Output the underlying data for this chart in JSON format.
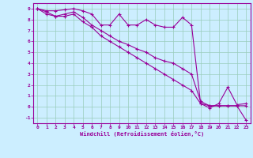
{
  "xlabel": "Windchill (Refroidissement éolien,°C)",
  "bg_color": "#cceeff",
  "line_color": "#990099",
  "grid_color": "#99ccbb",
  "axis_color": "#660066",
  "xlim": [
    -0.5,
    23.5
  ],
  "ylim": [
    -1.5,
    9.5
  ],
  "xticks": [
    0,
    1,
    2,
    3,
    4,
    5,
    6,
    7,
    8,
    9,
    10,
    11,
    12,
    13,
    14,
    15,
    16,
    17,
    18,
    19,
    20,
    21,
    22,
    23
  ],
  "yticks": [
    -1,
    0,
    1,
    2,
    3,
    4,
    5,
    6,
    7,
    8,
    9
  ],
  "line1_x": [
    0,
    1,
    2,
    3,
    4,
    5,
    6,
    7,
    8,
    9,
    10,
    11,
    12,
    13,
    14,
    15,
    16,
    17,
    18,
    19,
    20,
    21,
    22,
    23
  ],
  "line1_y": [
    9.0,
    8.8,
    8.8,
    8.9,
    9.0,
    8.8,
    8.5,
    7.5,
    7.5,
    8.5,
    7.5,
    7.5,
    8.0,
    7.5,
    7.3,
    7.3,
    8.2,
    7.5,
    0.3,
    -0.1,
    0.3,
    1.8,
    0.2,
    0.3
  ],
  "line2_x": [
    0,
    1,
    2,
    3,
    4,
    5,
    6,
    7,
    8,
    9,
    10,
    11,
    12,
    13,
    14,
    15,
    16,
    17,
    18,
    19,
    20,
    21,
    22,
    23
  ],
  "line2_y": [
    9.0,
    8.7,
    8.3,
    8.5,
    8.7,
    8.2,
    7.5,
    7.0,
    6.5,
    6.0,
    5.7,
    5.3,
    5.0,
    4.5,
    4.2,
    4.0,
    3.5,
    3.0,
    0.5,
    0.1,
    0.1,
    0.1,
    0.1,
    -1.2
  ],
  "line3_x": [
    0,
    1,
    2,
    3,
    4,
    5,
    6,
    7,
    8,
    9,
    10,
    11,
    12,
    13,
    14,
    15,
    16,
    17,
    18,
    19,
    20,
    21,
    22,
    23
  ],
  "line3_y": [
    9.0,
    8.5,
    8.3,
    8.3,
    8.5,
    7.8,
    7.3,
    6.5,
    6.0,
    5.5,
    5.0,
    4.5,
    4.0,
    3.5,
    3.0,
    2.5,
    2.0,
    1.5,
    0.3,
    0.1,
    0.1,
    0.1,
    0.1,
    0.1
  ]
}
